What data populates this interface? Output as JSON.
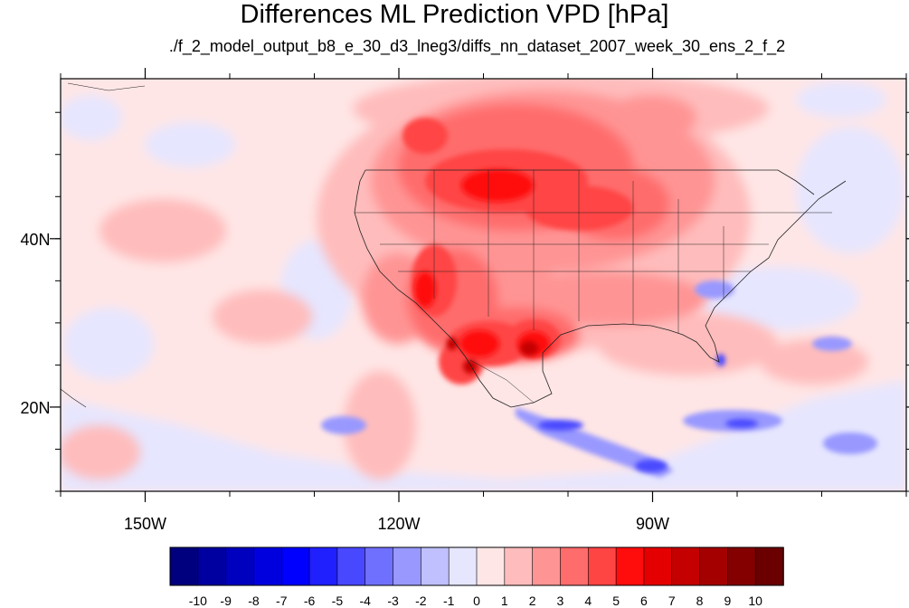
{
  "title": "Differences ML Prediction VPD [hPa]",
  "subtitle": "./f_2_model_output_b8_e_30_d3_lneg3/diffs_nn_dataset_2007_week_30_ens_2_f_2",
  "map": {
    "lon_range": [
      -160,
      -60
    ],
    "lat_range": [
      10,
      59
    ],
    "lon_tick_labels": [
      {
        "lon": -150,
        "label": "150W"
      },
      {
        "lon": -120,
        "label": "120W"
      },
      {
        "lon": -90,
        "label": "90W"
      }
    ],
    "lat_tick_labels": [
      {
        "lat": 40,
        "label": "40N"
      },
      {
        "lat": 20,
        "label": "20N"
      }
    ],
    "minor_lon_ticks": [
      -160,
      -150,
      -140,
      -130,
      -120,
      -110,
      -100,
      -90,
      -80,
      -70,
      -60
    ],
    "minor_lat_ticks": [
      10,
      15,
      20,
      25,
      30,
      35,
      40,
      45,
      50,
      55
    ]
  },
  "colorbar": {
    "labels": [
      "-10",
      "-9",
      "-8",
      "-7",
      "-6",
      "-5",
      "-4",
      "-3",
      "-2",
      "-1",
      "0",
      "1",
      "2",
      "3",
      "4",
      "5",
      "6",
      "7",
      "8",
      "9",
      "10"
    ],
    "colors": [
      "#00007f",
      "#0000a0",
      "#0000bf",
      "#0000df",
      "#0000ff",
      "#2020ff",
      "#4848ff",
      "#7070ff",
      "#9898ff",
      "#c0c0ff",
      "#e6e6ff",
      "#ffe6e6",
      "#ffbcbc",
      "#ff9494",
      "#ff6c6c",
      "#ff4444",
      "#ff0c0c",
      "#e40000",
      "#c40000",
      "#a40000",
      "#840000",
      "#6a0000"
    ]
  }
}
